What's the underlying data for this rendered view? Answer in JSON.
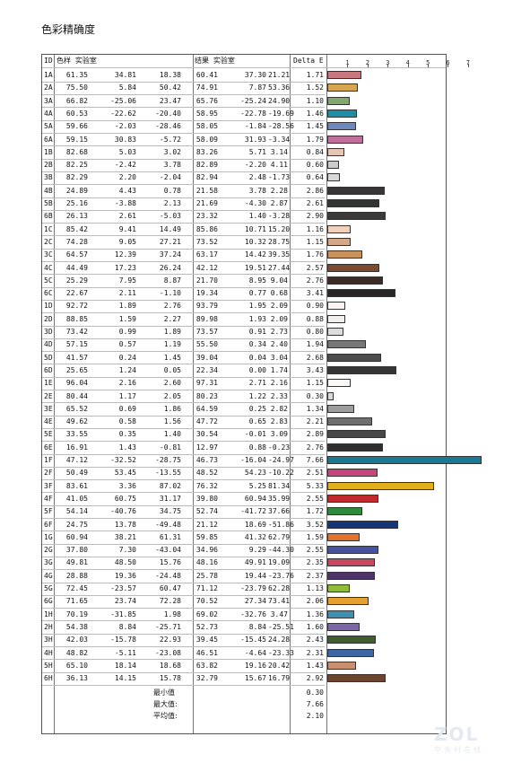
{
  "page_title": "色彩精确度",
  "watermark": {
    "logo": "ZOL",
    "sub": "中关村在线"
  },
  "headers": {
    "id": "ID",
    "ref": "色样 实验室",
    "result": "结果 实验室",
    "delta": "Delta E"
  },
  "chart_data": {
    "type": "bar",
    "orientation": "horizontal",
    "xlim": [
      0,
      7.5
    ],
    "x_ticks": [
      "1",
      "2",
      "3",
      "4",
      "5",
      "6",
      "7"
    ],
    "categories": [
      "1A",
      "2A",
      "3A",
      "4A",
      "5A",
      "6A",
      "1B",
      "2B",
      "3B",
      "4B",
      "5B",
      "6B",
      "1C",
      "2C",
      "3C",
      "4C",
      "5C",
      "6C",
      "1D",
      "2D",
      "3D",
      "4D",
      "5D",
      "6D",
      "1E",
      "2E",
      "3E",
      "4E",
      "5E",
      "6E",
      "1F",
      "2F",
      "3F",
      "4F",
      "5F",
      "6F",
      "1G",
      "2G",
      "3G",
      "4G",
      "5G",
      "6G",
      "1H",
      "2H",
      "3H",
      "4H",
      "5H",
      "6H"
    ],
    "values": [
      1.71,
      1.52,
      1.1,
      1.46,
      1.45,
      1.79,
      0.84,
      0.6,
      0.64,
      2.86,
      2.61,
      2.9,
      1.16,
      1.15,
      1.76,
      2.57,
      2.76,
      3.41,
      0.9,
      0.88,
      0.8,
      1.94,
      2.68,
      3.43,
      1.15,
      0.3,
      1.34,
      2.21,
      2.89,
      2.76,
      7.66,
      2.51,
      5.33,
      2.55,
      1.72,
      3.52,
      1.59,
      2.55,
      2.35,
      2.37,
      1.13,
      2.06,
      1.36,
      1.6,
      2.43,
      2.31,
      1.43,
      2.92
    ],
    "colors": [
      "#c8777f",
      "#d7a64f",
      "#83a86e",
      "#1d8ea5",
      "#6e88bd",
      "#c06e9a",
      "#e7c6b8",
      "#cccccc",
      "#d8d8d8",
      "#3a3536",
      "#323433",
      "#3a3a3a",
      "#f2d1bc",
      "#d2a888",
      "#c7925c",
      "#7c4a2f",
      "#3c2a25",
      "#2a2628",
      "#fbf4f3",
      "#f2efef",
      "#dddddd",
      "#777777",
      "#4d4d4d",
      "#363636",
      "#fdf8f8",
      "#dadada",
      "#9d9d9d",
      "#707070",
      "#484848",
      "#2e2e2e",
      "#1b7a93",
      "#c7447d",
      "#e2b01d",
      "#bf2a2a",
      "#2f8a3d",
      "#14347c",
      "#e4722b",
      "#4553a2",
      "#c84860",
      "#4c3468",
      "#8fbd3b",
      "#e6a02d",
      "#3f8fb0",
      "#7a66a9",
      "#3f5d2e",
      "#3f66a4",
      "#c99070",
      "#6b4530"
    ]
  },
  "rows": [
    {
      "id": "1A",
      "ref": [
        61.35,
        34.81,
        18.38
      ],
      "res": [
        60.41,
        37.3,
        21.21
      ],
      "de": "1.71"
    },
    {
      "id": "2A",
      "ref": [
        75.5,
        5.84,
        50.42
      ],
      "res": [
        74.91,
        7.87,
        53.36
      ],
      "de": "1.52"
    },
    {
      "id": "3A",
      "ref": [
        66.82,
        -25.06,
        23.47
      ],
      "res": [
        65.76,
        -25.24,
        24.9
      ],
      "de": "1.10"
    },
    {
      "id": "4A",
      "ref": [
        60.53,
        -22.62,
        -20.4
      ],
      "res": [
        58.95,
        -22.78,
        -19.69
      ],
      "de": "1.46"
    },
    {
      "id": "5A",
      "ref": [
        59.66,
        -2.03,
        -28.46
      ],
      "res": [
        58.05,
        -1.84,
        -28.56
      ],
      "de": "1.45"
    },
    {
      "id": "6A",
      "ref": [
        59.15,
        30.83,
        -5.72
      ],
      "res": [
        58.09,
        31.93,
        -3.34
      ],
      "de": "1.79"
    },
    {
      "id": "1B",
      "ref": [
        82.68,
        5.03,
        3.02
      ],
      "res": [
        83.26,
        5.71,
        3.14
      ],
      "de": "0.84"
    },
    {
      "id": "2B",
      "ref": [
        82.25,
        -2.42,
        3.78
      ],
      "res": [
        82.89,
        -2.2,
        4.11
      ],
      "de": "0.60"
    },
    {
      "id": "3B",
      "ref": [
        82.29,
        2.2,
        -2.04
      ],
      "res": [
        82.94,
        2.48,
        -1.73
      ],
      "de": "0.64"
    },
    {
      "id": "4B",
      "ref": [
        24.89,
        4.43,
        0.78
      ],
      "res": [
        21.58,
        3.78,
        2.28
      ],
      "de": "2.86"
    },
    {
      "id": "5B",
      "ref": [
        25.16,
        -3.88,
        2.13
      ],
      "res": [
        21.69,
        -4.3,
        2.87
      ],
      "de": "2.61"
    },
    {
      "id": "6B",
      "ref": [
        26.13,
        2.61,
        -5.03
      ],
      "res": [
        23.32,
        1.4,
        -3.28
      ],
      "de": "2.90"
    },
    {
      "id": "1C",
      "ref": [
        85.42,
        9.41,
        14.49
      ],
      "res": [
        85.86,
        10.71,
        15.2
      ],
      "de": "1.16"
    },
    {
      "id": "2C",
      "ref": [
        74.28,
        9.05,
        27.21
      ],
      "res": [
        73.52,
        10.32,
        28.75
      ],
      "de": "1.15"
    },
    {
      "id": "3C",
      "ref": [
        64.57,
        12.39,
        37.24
      ],
      "res": [
        63.17,
        14.42,
        39.35
      ],
      "de": "1.76"
    },
    {
      "id": "4C",
      "ref": [
        44.49,
        17.23,
        26.24
      ],
      "res": [
        42.12,
        19.51,
        27.44
      ],
      "de": "2.57"
    },
    {
      "id": "5C",
      "ref": [
        25.29,
        7.95,
        8.87
      ],
      "res": [
        21.7,
        8.95,
        9.04
      ],
      "de": "2.76"
    },
    {
      "id": "6C",
      "ref": [
        22.67,
        2.11,
        -1.1
      ],
      "res": [
        19.34,
        0.77,
        0.68
      ],
      "de": "3.41"
    },
    {
      "id": "1D",
      "ref": [
        92.72,
        1.89,
        2.76
      ],
      "res": [
        93.79,
        1.95,
        2.09
      ],
      "de": "0.90"
    },
    {
      "id": "2D",
      "ref": [
        88.85,
        1.59,
        2.27
      ],
      "res": [
        89.98,
        1.93,
        2.09
      ],
      "de": "0.88"
    },
    {
      "id": "3D",
      "ref": [
        73.42,
        0.99,
        1.89
      ],
      "res": [
        73.57,
        0.91,
        2.73
      ],
      "de": "0.80"
    },
    {
      "id": "4D",
      "ref": [
        57.15,
        0.57,
        1.19
      ],
      "res": [
        55.5,
        0.34,
        2.4
      ],
      "de": "1.94"
    },
    {
      "id": "5D",
      "ref": [
        41.57,
        0.24,
        1.45
      ],
      "res": [
        39.04,
        0.04,
        3.04
      ],
      "de": "2.68"
    },
    {
      "id": "6D",
      "ref": [
        25.65,
        1.24,
        0.05
      ],
      "res": [
        22.34,
        0.0,
        1.74
      ],
      "de": "3.43"
    },
    {
      "id": "1E",
      "ref": [
        96.04,
        2.16,
        2.6
      ],
      "res": [
        97.31,
        2.71,
        2.16
      ],
      "de": "1.15"
    },
    {
      "id": "2E",
      "ref": [
        80.44,
        1.17,
        2.05
      ],
      "res": [
        80.23,
        1.22,
        2.33
      ],
      "de": "0.30"
    },
    {
      "id": "3E",
      "ref": [
        65.52,
        0.69,
        1.86
      ],
      "res": [
        64.59,
        0.25,
        2.82
      ],
      "de": "1.34"
    },
    {
      "id": "4E",
      "ref": [
        49.62,
        0.58,
        1.56
      ],
      "res": [
        47.72,
        0.65,
        2.83
      ],
      "de": "2.21"
    },
    {
      "id": "5E",
      "ref": [
        33.55,
        0.35,
        1.4
      ],
      "res": [
        30.54,
        -0.01,
        3.09
      ],
      "de": "2.89"
    },
    {
      "id": "6E",
      "ref": [
        16.91,
        1.43,
        -0.81
      ],
      "res": [
        12.97,
        0.88,
        -0.23
      ],
      "de": "2.76"
    },
    {
      "id": "1F",
      "ref": [
        47.12,
        -32.52,
        -28.75
      ],
      "res": [
        46.73,
        -16.04,
        -24.97
      ],
      "de": "7.66"
    },
    {
      "id": "2F",
      "ref": [
        50.49,
        53.45,
        -13.55
      ],
      "res": [
        48.52,
        54.23,
        -10.22
      ],
      "de": "2.51"
    },
    {
      "id": "3F",
      "ref": [
        83.61,
        3.36,
        87.02
      ],
      "res": [
        76.32,
        5.25,
        81.34
      ],
      "de": "5.33"
    },
    {
      "id": "4F",
      "ref": [
        41.05,
        60.75,
        31.17
      ],
      "res": [
        39.8,
        60.94,
        35.99
      ],
      "de": "2.55"
    },
    {
      "id": "5F",
      "ref": [
        54.14,
        -40.76,
        34.75
      ],
      "res": [
        52.74,
        -41.72,
        37.66
      ],
      "de": "1.72"
    },
    {
      "id": "6F",
      "ref": [
        24.75,
        13.78,
        -49.48
      ],
      "res": [
        21.12,
        18.69,
        -51.86
      ],
      "de": "3.52"
    },
    {
      "id": "1G",
      "ref": [
        60.94,
        38.21,
        61.31
      ],
      "res": [
        59.85,
        41.32,
        62.79
      ],
      "de": "1.59"
    },
    {
      "id": "2G",
      "ref": [
        37.8,
        7.3,
        -43.04
      ],
      "res": [
        34.96,
        9.29,
        -44.3
      ],
      "de": "2.55"
    },
    {
      "id": "3G",
      "ref": [
        49.81,
        48.5,
        15.76
      ],
      "res": [
        48.16,
        49.91,
        19.09
      ],
      "de": "2.35"
    },
    {
      "id": "4G",
      "ref": [
        28.88,
        19.36,
        -24.48
      ],
      "res": [
        25.78,
        19.44,
        -23.76
      ],
      "de": "2.37"
    },
    {
      "id": "5G",
      "ref": [
        72.45,
        -23.57,
        60.47
      ],
      "res": [
        71.12,
        -23.79,
        62.28
      ],
      "de": "1.13"
    },
    {
      "id": "6G",
      "ref": [
        71.65,
        23.74,
        72.28
      ],
      "res": [
        70.52,
        27.34,
        73.41
      ],
      "de": "2.06"
    },
    {
      "id": "1H",
      "ref": [
        70.19,
        -31.85,
        1.98
      ],
      "res": [
        69.02,
        -32.76,
        3.47
      ],
      "de": "1.36"
    },
    {
      "id": "2H",
      "ref": [
        54.38,
        8.84,
        -25.71
      ],
      "res": [
        52.73,
        8.84,
        -25.51
      ],
      "de": "1.60"
    },
    {
      "id": "3H",
      "ref": [
        42.03,
        -15.78,
        22.93
      ],
      "res": [
        39.45,
        -15.45,
        24.28
      ],
      "de": "2.43"
    },
    {
      "id": "4H",
      "ref": [
        48.82,
        -5.11,
        -23.08
      ],
      "res": [
        46.51,
        -4.64,
        -23.33
      ],
      "de": "2.31"
    },
    {
      "id": "5H",
      "ref": [
        65.1,
        18.14,
        18.68
      ],
      "res": [
        63.82,
        19.16,
        20.42
      ],
      "de": "1.43"
    },
    {
      "id": "6H",
      "ref": [
        36.13,
        14.15,
        15.78
      ],
      "res": [
        32.79,
        15.67,
        16.79
      ],
      "de": "2.92"
    }
  ],
  "summary": [
    {
      "label": "最小值",
      "value": "0.30"
    },
    {
      "label": "最大值:",
      "value": "7.66"
    },
    {
      "label": "平均值:",
      "value": "2.10"
    }
  ]
}
